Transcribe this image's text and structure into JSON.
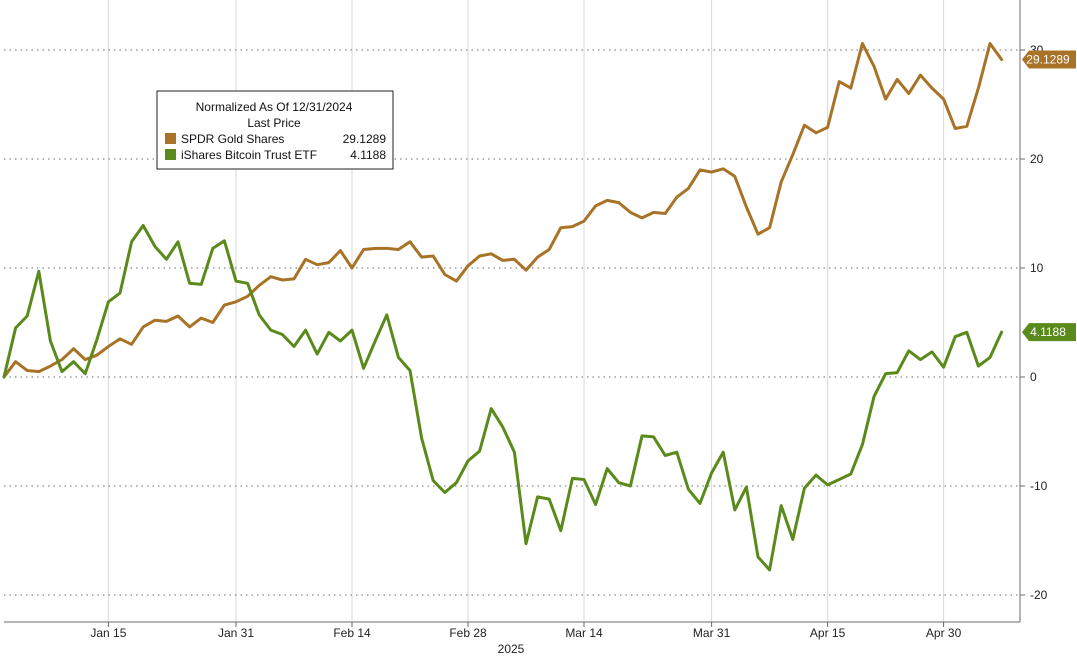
{
  "chart_data": {
    "type": "line",
    "legend": {
      "title": "Normalized As Of 12/31/2024",
      "subtitle": "Last Price",
      "placement": "top-left"
    },
    "x_ticks": [
      {
        "label": "Jan 15",
        "index": 9
      },
      {
        "label": "Jan 31",
        "index": 20
      },
      {
        "label": "Feb 14",
        "index": 30
      },
      {
        "label": "Feb 28",
        "index": 40
      },
      {
        "label": "Mar 14",
        "index": 50
      },
      {
        "label": "Mar 31",
        "index": 61
      },
      {
        "label": "Apr 15",
        "index": 71
      },
      {
        "label": "Apr 30",
        "index": 81
      }
    ],
    "x_year_label": "2025",
    "y_ticks": [
      -20,
      -10,
      0,
      10,
      20,
      30
    ],
    "ylim": [
      -22.5,
      34
    ],
    "y_axis_side": "right",
    "grid": true,
    "series": [
      {
        "name": "SPDR Gold Shares",
        "last": "29.1289",
        "color": "#a87326",
        "values": [
          0,
          1.4,
          0.6,
          0.5,
          1.0,
          1.6,
          2.6,
          1.6,
          2.0,
          2.8,
          3.5,
          3.0,
          4.6,
          5.2,
          5.1,
          5.6,
          4.6,
          5.4,
          5.0,
          6.6,
          6.9,
          7.4,
          8.4,
          9.2,
          8.9,
          9.0,
          10.8,
          10.3,
          10.5,
          11.6,
          10.0,
          11.7,
          11.8,
          11.8,
          11.7,
          12.4,
          11.0,
          11.1,
          9.4,
          8.8,
          10.2,
          11.1,
          11.3,
          10.7,
          10.8,
          9.8,
          11.0,
          11.7,
          13.7,
          13.8,
          14.3,
          15.7,
          16.2,
          16.0,
          15.1,
          14.6,
          15.1,
          15.0,
          16.5,
          17.3,
          19.0,
          18.8,
          19.1,
          18.4,
          15.6,
          13.1,
          13.7,
          17.9,
          20.4,
          23.1,
          22.4,
          22.9,
          27.1,
          26.5,
          30.6,
          28.5,
          25.5,
          27.3,
          26.0,
          27.7,
          26.5,
          25.5,
          22.8,
          23.0,
          26.5,
          30.6,
          29.1289
        ]
      },
      {
        "name": "iShares Bitcoin Trust ETF",
        "last": "4.1188",
        "color": "#5b8a1c",
        "values": [
          0,
          4.5,
          5.6,
          9.7,
          3.3,
          0.5,
          1.4,
          0.3,
          3.4,
          6.9,
          7.7,
          12.4,
          13.9,
          12.0,
          10.8,
          12.4,
          8.6,
          8.5,
          11.8,
          12.5,
          8.8,
          8.6,
          5.7,
          4.3,
          3.9,
          2.8,
          4.3,
          2.1,
          4.1,
          3.3,
          4.3,
          0.8,
          3.3,
          5.7,
          1.8,
          0.6,
          -5.6,
          -9.5,
          -10.6,
          -9.7,
          -7.7,
          -6.8,
          -2.9,
          -4.6,
          -6.9,
          -15.3,
          -11.0,
          -11.2,
          -14.1,
          -9.3,
          -9.4,
          -11.7,
          -8.4,
          -9.7,
          -10.0,
          -5.4,
          -5.5,
          -7.2,
          -6.9,
          -10.3,
          -11.6,
          -8.8,
          -6.9,
          -12.2,
          -10.1,
          -16.5,
          -17.7,
          -11.8,
          -14.9,
          -10.2,
          -9.0,
          -9.9,
          -9.4,
          -8.9,
          -6.2,
          -1.8,
          0.3,
          0.4,
          2.4,
          1.6,
          2.3,
          0.9,
          3.7,
          4.1,
          1.0,
          1.8,
          4.1188
        ]
      }
    ]
  }
}
